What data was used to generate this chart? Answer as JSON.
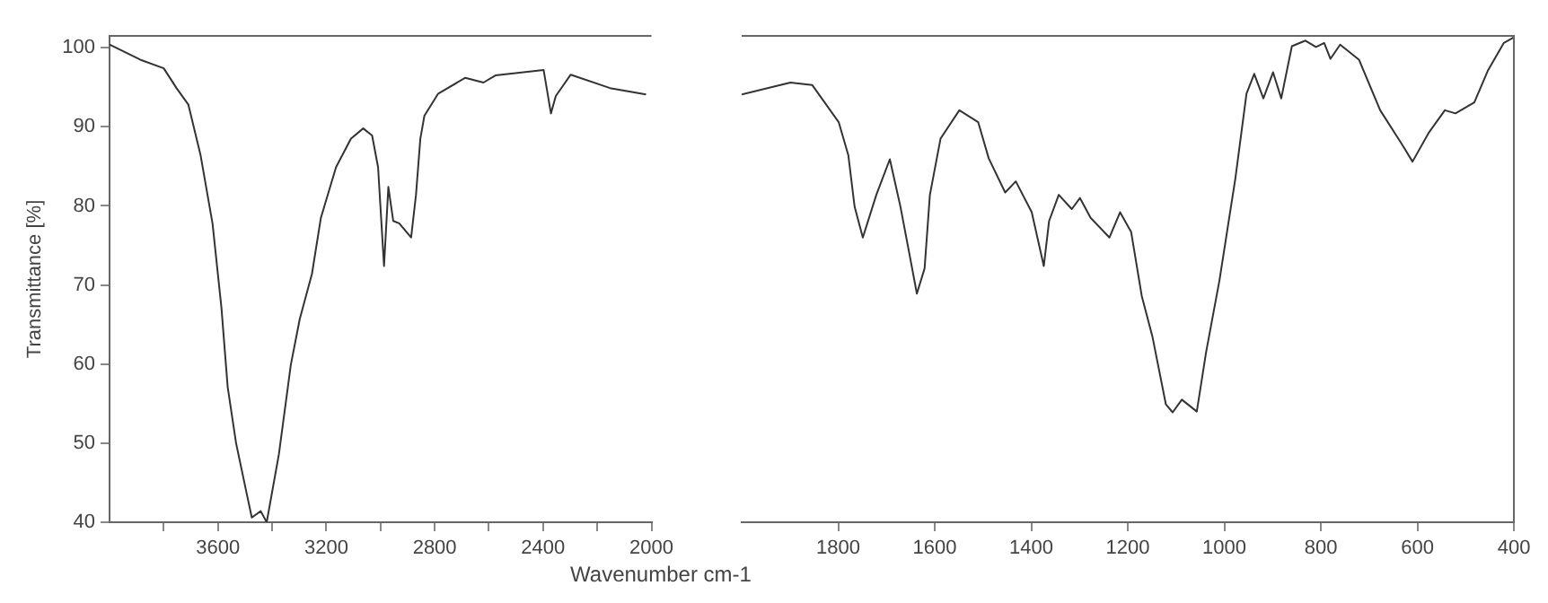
{
  "chart_data": [
    {
      "type": "line",
      "ylabel": "Transmittance [%]",
      "color": "#333333",
      "marker": "none",
      "line_style": "solid",
      "grid": false,
      "legend": false,
      "x": [
        4000,
        3887,
        3800,
        3753,
        3709,
        3664,
        3620,
        3587,
        3564,
        3533,
        3498,
        3475,
        3442,
        3420,
        3375,
        3331,
        3298,
        3253,
        3220,
        3164,
        3109,
        3064,
        3031,
        3009,
        2987,
        2971,
        2953,
        2931,
        2887,
        2869,
        2853,
        2838,
        2787,
        2687,
        2620,
        2576,
        2420,
        2398,
        2371,
        2353,
        2298,
        2153,
        2020
      ],
      "values": [
        100.4,
        98.5,
        97.4,
        94.9,
        92.8,
        86.4,
        77.8,
        67.1,
        57.1,
        50,
        44.3,
        40.6,
        41.4,
        40,
        48.6,
        59.9,
        65.7,
        71.4,
        78.5,
        84.9,
        88.5,
        89.8,
        88.9,
        84.9,
        72.4,
        82.4,
        78.1,
        77.8,
        76,
        81.4,
        88.5,
        91.4,
        94.2,
        96.2,
        95.6,
        96.5,
        97.1,
        97.2,
        91.7,
        93.9,
        96.6,
        94.9,
        94.1
      ],
      "xlim": [
        4000,
        2000
      ],
      "xticks": [
        {
          "value": 3800,
          "label": null
        },
        3600,
        {
          "value": 3400,
          "label": null
        },
        3200,
        {
          "value": 3000,
          "label": null
        },
        2800,
        {
          "value": 2600,
          "label": null
        },
        2400,
        {
          "value": 2200,
          "label": null
        },
        2000
      ],
      "ylim": [
        40,
        101.5
      ],
      "yticks": [
        40,
        50,
        60,
        70,
        80,
        90,
        100
      ]
    },
    {
      "type": "line",
      "xlabel": "Wavenumber cm-1",
      "color": "#333333",
      "marker": "none",
      "line_style": "solid",
      "grid": false,
      "legend": false,
      "tick_labels": "x",
      "x": [
        2000,
        1899,
        1854,
        1799,
        1779,
        1766,
        1749,
        1721,
        1693,
        1671,
        1649,
        1637,
        1621,
        1610,
        1588,
        1549,
        1510,
        1488,
        1454,
        1432,
        1399,
        1374,
        1363,
        1343,
        1316,
        1299,
        1277,
        1238,
        1216,
        1193,
        1171,
        1149,
        1121,
        1107,
        1088,
        1057,
        1038,
        1010,
        977,
        954,
        938,
        919,
        899,
        882,
        860,
        832,
        810,
        793,
        780,
        760,
        721,
        677,
        632,
        610,
        577,
        543,
        521,
        482,
        454,
        421,
        401
      ],
      "values": [
        94.1,
        95.6,
        95.3,
        90.6,
        86.4,
        79.9,
        76,
        81.4,
        85.9,
        79.9,
        72.8,
        68.9,
        72.1,
        81.4,
        88.5,
        92.1,
        90.6,
        86,
        81.7,
        83.1,
        79.2,
        72.4,
        78.1,
        81.4,
        79.6,
        81,
        78.5,
        76,
        79.2,
        76.7,
        68.6,
        63.5,
        54.9,
        53.9,
        55.5,
        54,
        61.4,
        70.6,
        83.5,
        94.2,
        96.7,
        93.6,
        96.9,
        93.6,
        100.2,
        100.9,
        100.1,
        100.6,
        98.6,
        100.4,
        98.5,
        92.1,
        87.8,
        85.6,
        89.2,
        92.1,
        91.7,
        93.1,
        97.1,
        100.6,
        101.3
      ],
      "xlim": [
        2000,
        400
      ],
      "xticks": [
        1800,
        1600,
        1400,
        1200,
        1000,
        800,
        600,
        400
      ],
      "ylim": [
        40,
        101.5
      ]
    }
  ]
}
